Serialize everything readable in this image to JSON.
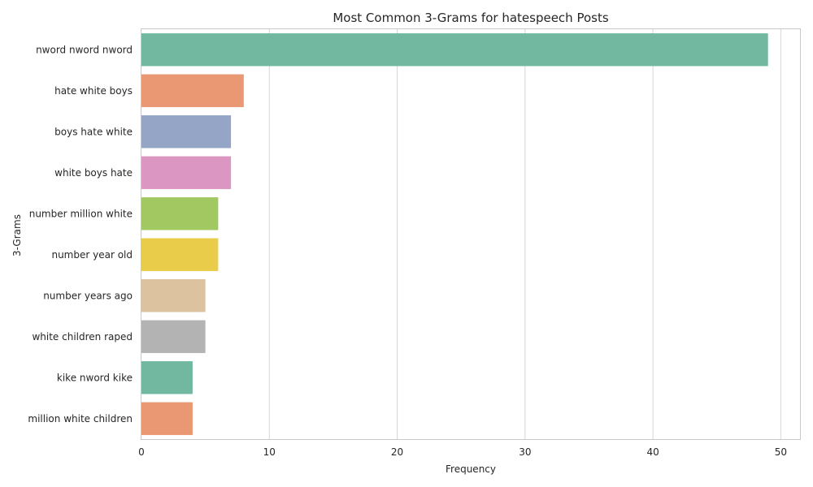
{
  "chart_data": {
    "type": "bar",
    "orientation": "horizontal",
    "title": "Most Common 3-Grams for hatespeech Posts",
    "xlabel": "Frequency",
    "ylabel": "3-Grams",
    "xlim": [
      0,
      51.5
    ],
    "xticks": [
      0,
      10,
      20,
      30,
      40,
      50
    ],
    "grid": "vertical",
    "categories": [
      "nword nword nword",
      "hate white boys",
      "boys hate white",
      "white boys hate",
      "number million white",
      "number year old",
      "number years ago",
      "white children raped",
      "kike nword kike",
      "million white children"
    ],
    "values": [
      49,
      8,
      7,
      7,
      6,
      6,
      5,
      5,
      4,
      4
    ],
    "colors": [
      "#72b8a1",
      "#ea9874",
      "#94a5c6",
      "#dc96c2",
      "#a2c862",
      "#e8cc4a",
      "#dcc29e",
      "#b3b3b3",
      "#72b8a1",
      "#ea9874"
    ]
  }
}
